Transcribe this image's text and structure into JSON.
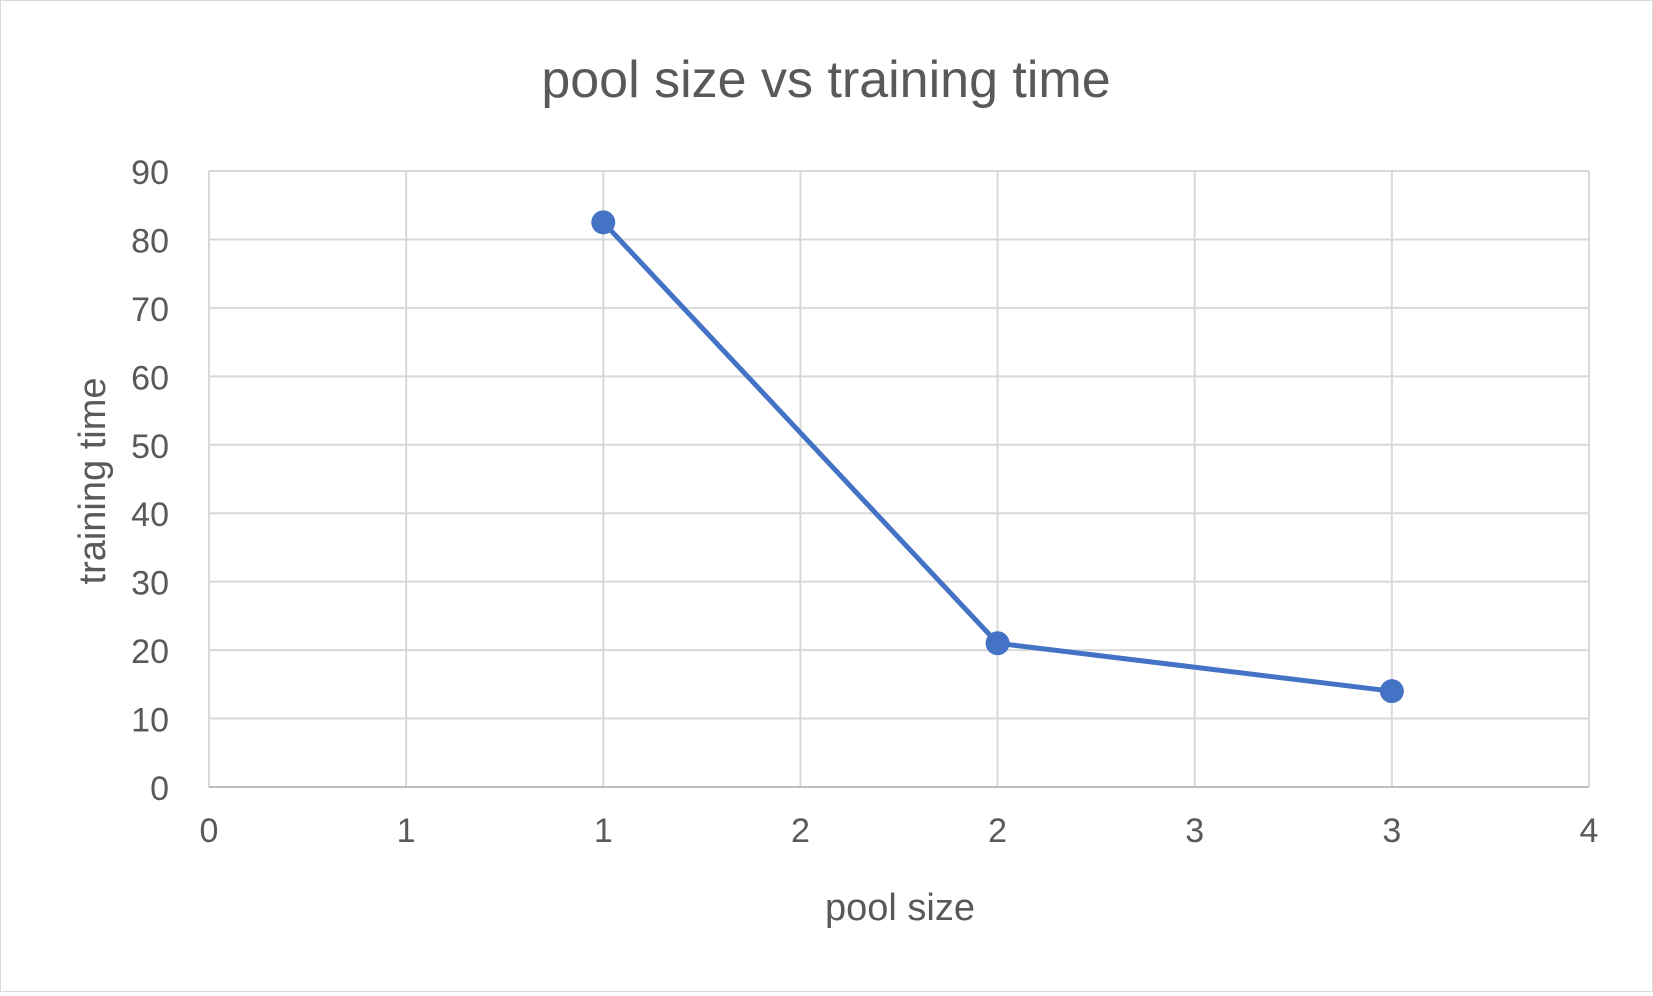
{
  "chart_data": {
    "type": "scatter",
    "title": "pool size vs training time",
    "xlabel": "pool size",
    "ylabel": "training time",
    "xlim": [
      0,
      3.5
    ],
    "ylim": [
      0,
      90
    ],
    "x_ticks": [
      0,
      0.5,
      1,
      1.5,
      2,
      2.5,
      3,
      3.5
    ],
    "x_tick_labels": [
      "0",
      "1",
      "1",
      "2",
      "2",
      "3",
      "3",
      "4"
    ],
    "y_ticks": [
      0,
      10,
      20,
      30,
      40,
      50,
      60,
      70,
      80,
      90
    ],
    "y_tick_labels": [
      "0",
      "10",
      "20",
      "30",
      "40",
      "50",
      "60",
      "70",
      "80",
      "90"
    ],
    "grid": true,
    "legend": "none",
    "series": [
      {
        "color": "#4472c4",
        "x": [
          1,
          2,
          3
        ],
        "y": [
          82.5,
          21,
          14
        ]
      }
    ]
  }
}
